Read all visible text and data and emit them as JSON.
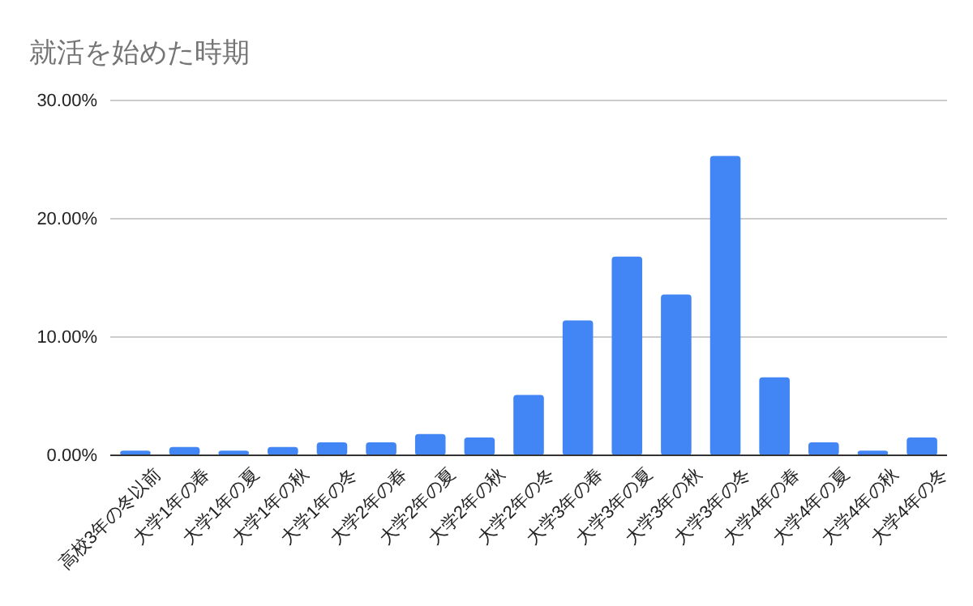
{
  "chart_data": {
    "type": "bar",
    "title": "就活を始めた時期",
    "categories": [
      "高校3年の冬以前",
      "大学1年の春",
      "大学1年の夏",
      "大学1年の秋",
      "大学1年の冬",
      "大学2年の春",
      "大学2年の夏",
      "大学2年の秋",
      "大学2年の冬",
      "大学3年の春",
      "大学3年の夏",
      "大学3年の秋",
      "大学3年の冬",
      "大学4年の春",
      "大学4年の夏",
      "大学4年の秋",
      "大学4年の冬"
    ],
    "values": [
      0.4,
      0.7,
      0.4,
      0.7,
      1.1,
      1.1,
      1.8,
      1.5,
      5.1,
      11.4,
      16.8,
      13.6,
      25.3,
      6.6,
      1.1,
      0.4,
      1.5
    ],
    "color": "#4285f4",
    "ylim": [
      0,
      30
    ],
    "yticks": [
      {
        "value": 0,
        "label": "0.00%"
      },
      {
        "value": 10,
        "label": "10.00%"
      },
      {
        "value": 20,
        "label": "20.00%"
      },
      {
        "value": 30,
        "label": "30.00%"
      }
    ],
    "grid": "y"
  }
}
